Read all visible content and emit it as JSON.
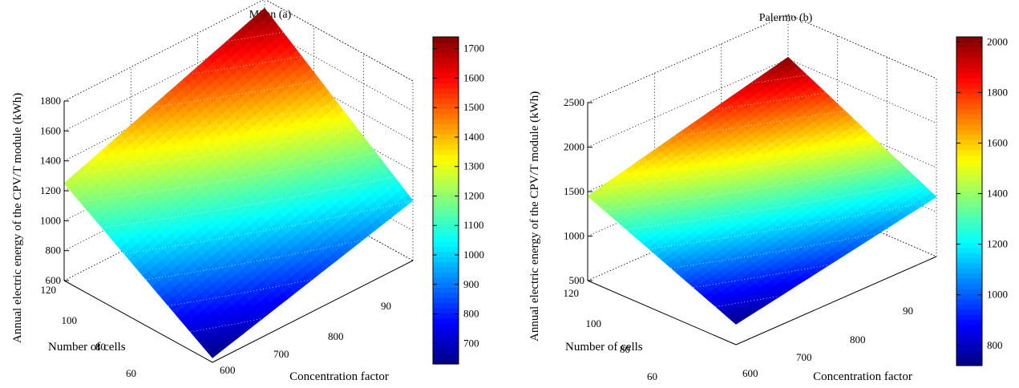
{
  "chart_data": [
    {
      "type": "surface3d",
      "title": "Milan (a)",
      "xlabel": "Concentration factor",
      "ylabel": "Number of cells",
      "zlabel": "Annual electric energy of the CPV/T module (kWh)",
      "x_ticks": [
        "600",
        "700",
        "800",
        "90"
      ],
      "y_ticks": [
        "120",
        "100",
        "80",
        "60"
      ],
      "z_ticks": [
        "600",
        "800",
        "1000",
        "1200",
        "1400",
        "1600",
        "1800"
      ],
      "xlim": [
        600,
        900
      ],
      "ylim": [
        60,
        120
      ],
      "zlim": [
        600,
        1800
      ],
      "surface_corners": [
        {
          "concentration_factor": 600,
          "number_of_cells": 60,
          "energy": 630
        },
        {
          "concentration_factor": 900,
          "number_of_cells": 60,
          "energy": 1000
        },
        {
          "concentration_factor": 600,
          "number_of_cells": 120,
          "energy": 1250
        },
        {
          "concentration_factor": 900,
          "number_of_cells": 120,
          "energy": 1740
        }
      ],
      "colorbar": {
        "ticks": [
          "700",
          "800",
          "900",
          "1000",
          "1100",
          "1200",
          "1300",
          "1400",
          "1500",
          "1600",
          "1700"
        ],
        "range": [
          630,
          1740
        ],
        "colormap": "jet"
      },
      "grid": true
    },
    {
      "type": "surface3d",
      "title": "Palermo (b)",
      "xlabel": "Concentration factor",
      "ylabel": "Number of cells",
      "zlabel": "Annual electric energy of the CPV/T module (kWh)",
      "x_ticks": [
        "600",
        "700",
        "800",
        "90"
      ],
      "y_ticks": [
        "120",
        "100",
        "80",
        "60"
      ],
      "z_ticks": [
        "500",
        "1000",
        "1500",
        "2000",
        "2500"
      ],
      "xlim": [
        600,
        900
      ],
      "ylim": [
        60,
        120
      ],
      "zlim": [
        500,
        2500
      ],
      "surface_corners": [
        {
          "concentration_factor": 600,
          "number_of_cells": 60,
          "energy": 730
        },
        {
          "concentration_factor": 900,
          "number_of_cells": 60,
          "energy": 1170
        },
        {
          "concentration_factor": 600,
          "number_of_cells": 120,
          "energy": 1450
        },
        {
          "concentration_factor": 900,
          "number_of_cells": 120,
          "energy": 2020
        }
      ],
      "colorbar": {
        "ticks": [
          "800",
          "1000",
          "1200",
          "1400",
          "1600",
          "1800",
          "2000"
        ],
        "range": [
          720,
          2020
        ],
        "colormap": "jet"
      },
      "grid": true
    }
  ]
}
